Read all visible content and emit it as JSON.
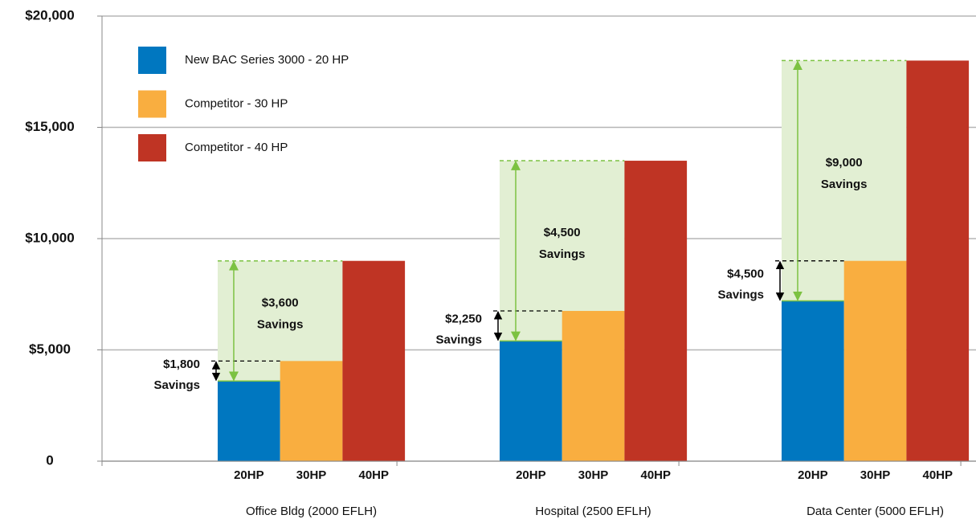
{
  "chart_data": {
    "type": "bar",
    "categories": [
      "Office Bldg (2000 EFLH)",
      "Hospital (2500 EFLH)",
      "Data Center (5000 EFLH)"
    ],
    "bar_labels": [
      "20HP",
      "30HP",
      "40HP"
    ],
    "series": [
      {
        "name": "New BAC Series 3000 - 20 HP",
        "color": "#0077c0",
        "values": [
          3600,
          5400,
          7200
        ]
      },
      {
        "name": "Competitor - 30 HP",
        "color": "#f9ae40",
        "values": [
          4500,
          6750,
          9000
        ]
      },
      {
        "name": "Competitor - 40 HP",
        "color": "#bf3424",
        "values": [
          9000,
          13500,
          18000
        ]
      }
    ],
    "ylim": [
      0,
      20000
    ],
    "yticks": [
      0,
      {
        "value": 5000,
        "label": "$5,000"
      },
      {
        "value": 10000,
        "label": "$10,000"
      },
      {
        "value": 15000,
        "label": "$15,000"
      },
      {
        "value": 20000,
        "label": "$20,000"
      }
    ],
    "grid": true,
    "legend": "upper left",
    "annotations": [
      [
        [
          "$1,800",
          "Savings"
        ],
        [
          "$3,600",
          "Savings"
        ]
      ],
      [
        [
          "$2,250",
          "Savings"
        ],
        [
          "$4,500",
          "Savings"
        ]
      ],
      [
        [
          "$4,500",
          "Savings"
        ],
        [
          "$9,000",
          "Savings"
        ]
      ]
    ]
  }
}
